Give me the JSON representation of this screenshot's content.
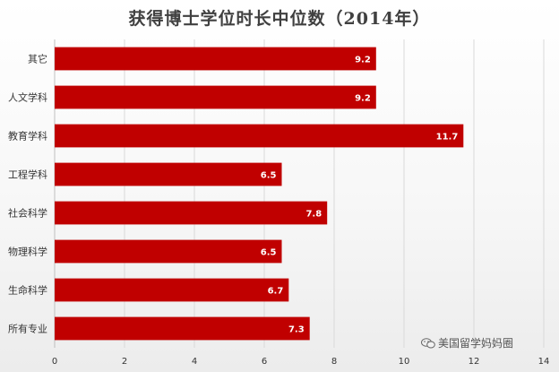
{
  "chart_data": {
    "type": "bar",
    "orientation": "horizontal",
    "title": "获得博士学位时长中位数（2014年）",
    "categories": [
      "其它",
      "人文学科",
      "教育学科",
      "工程学科",
      "社会科学",
      "物理科学",
      "生命科学",
      "所有专业"
    ],
    "values": [
      9.2,
      9.2,
      11.7,
      6.5,
      7.8,
      6.5,
      6.7,
      7.3
    ],
    "xlim": [
      0,
      14
    ],
    "xticks": [
      0,
      2,
      4,
      6,
      8,
      10,
      12,
      14
    ],
    "grid": true,
    "bar_color": "#c00000"
  },
  "watermark": {
    "text": "美国留学妈妈圈",
    "icon": "wechat-icon"
  }
}
